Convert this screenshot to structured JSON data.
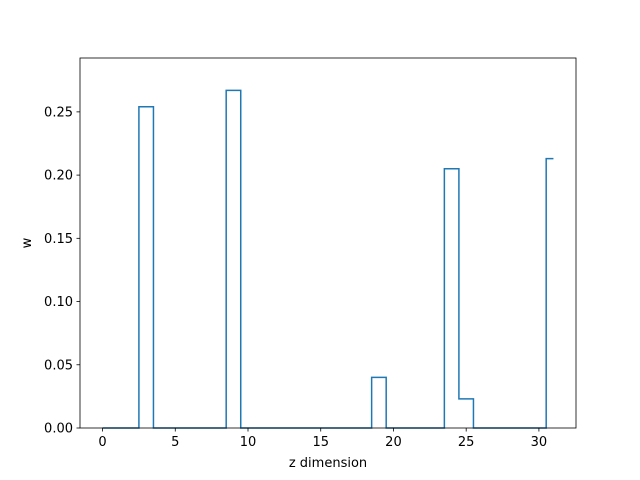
{
  "chart_data": {
    "type": "line",
    "drawstyle": "steps-mid",
    "title": "",
    "xlabel": "z dimension",
    "ylabel": "w",
    "xlim": [
      -1.55,
      32.55
    ],
    "ylim": [
      0,
      0.2926
    ],
    "xticks": [
      0,
      5,
      10,
      15,
      20,
      25,
      30
    ],
    "xtick_labels": [
      "0",
      "5",
      "10",
      "15",
      "20",
      "25",
      "30"
    ],
    "yticks": [
      0.0,
      0.05,
      0.1,
      0.15,
      0.2,
      0.25
    ],
    "ytick_labels": [
      "0.00",
      "0.05",
      "0.10",
      "0.15",
      "0.20",
      "0.25"
    ],
    "grid": false,
    "line_color": "#1f77b4",
    "series": [
      {
        "x": [
          0,
          1,
          2,
          3,
          4,
          5,
          6,
          7,
          8,
          9,
          10,
          11,
          12,
          13,
          14,
          15,
          16,
          17,
          18,
          19,
          20,
          21,
          22,
          23,
          24,
          25,
          26,
          27,
          28,
          29,
          30,
          31
        ],
        "values": [
          0,
          0,
          0,
          0.254,
          0,
          0,
          0,
          0,
          0,
          0.267,
          0,
          0,
          0,
          0,
          0,
          0,
          0,
          0,
          0,
          0.04,
          0,
          0,
          0,
          0,
          0.205,
          0.023,
          0,
          0,
          0,
          0,
          0,
          0.213
        ]
      }
    ]
  }
}
